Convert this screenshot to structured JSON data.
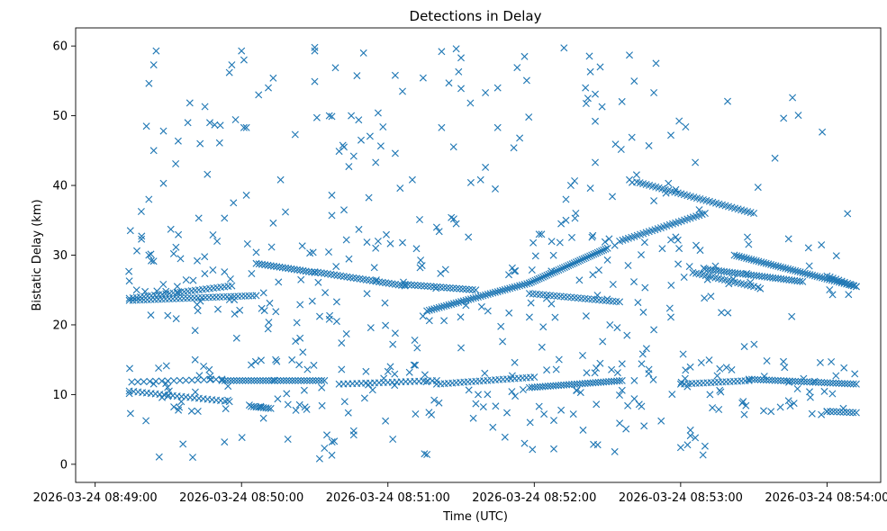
{
  "chart_data": {
    "type": "scatter",
    "title": "Detections in Delay",
    "xlabel": "Time (UTC)",
    "ylabel": "Bistatic Delay (km)",
    "marker": "x",
    "color": "#1f77b4",
    "xlim": [
      -8,
      322
    ],
    "ylim": [
      -2.6,
      62.6
    ],
    "x_unit": "seconds after 2026-03-24 08:49:00",
    "x_ticks": [
      {
        "value": 0,
        "label": "2026-03-24 08:49:00"
      },
      {
        "value": 60,
        "label": "2026-03-24 08:50:00"
      },
      {
        "value": 120,
        "label": "2026-03-24 08:51:00"
      },
      {
        "value": 180,
        "label": "2026-03-24 08:52:00"
      },
      {
        "value": 240,
        "label": "2026-03-24 08:53:00"
      },
      {
        "value": 300,
        "label": "2026-03-24 08:54:00"
      }
    ],
    "y_ticks": [
      0,
      10,
      20,
      30,
      40,
      50,
      60
    ],
    "tracks": [
      {
        "name": "track-a",
        "x_start": 14,
        "x_end": 66,
        "x_step": 1.5,
        "y_start": 23.5,
        "y_end": 24.2
      },
      {
        "name": "track-b",
        "x_start": 14,
        "x_end": 56,
        "x_step": 1.5,
        "y_start": 23.8,
        "y_end": 25.6
      },
      {
        "name": "track-c",
        "x_start": 66,
        "x_end": 90,
        "x_step": 1.2,
        "y_start": 28.8,
        "y_end": 27.5
      },
      {
        "name": "track-d",
        "x_start": 90,
        "x_end": 127,
        "x_step": 1.3,
        "y_start": 27.6,
        "y_end": 25.6
      },
      {
        "name": "track-e",
        "x_start": 127,
        "x_end": 156,
        "x_step": 1.3,
        "y_start": 25.8,
        "y_end": 25.0
      },
      {
        "name": "track-f",
        "x_start": 136,
        "x_end": 178,
        "x_step": 1.0,
        "y_start": 22.0,
        "y_end": 26.0
      },
      {
        "name": "track-g",
        "x_start": 178,
        "x_end": 210,
        "x_step": 0.8,
        "y_start": 26.0,
        "y_end": 31.0
      },
      {
        "name": "track-h",
        "x_start": 178,
        "x_end": 215,
        "x_step": 1.4,
        "y_start": 24.5,
        "y_end": 23.3
      },
      {
        "name": "track-i",
        "x_start": 215,
        "x_end": 250,
        "x_step": 1.2,
        "y_start": 32.0,
        "y_end": 36.0
      },
      {
        "name": "track-j",
        "x_start": 222,
        "x_end": 270,
        "x_step": 1.3,
        "y_start": 40.5,
        "y_end": 36.0
      },
      {
        "name": "track-k",
        "x_start": 245,
        "x_end": 270,
        "x_step": 1.3,
        "y_start": 27.5,
        "y_end": 25.5
      },
      {
        "name": "track-l",
        "x_start": 250,
        "x_end": 290,
        "x_step": 1.1,
        "y_start": 28.0,
        "y_end": 26.2
      },
      {
        "name": "track-m",
        "x_start": 262,
        "x_end": 312,
        "x_step": 1.0,
        "y_start": 30.0,
        "y_end": 25.5
      },
      {
        "name": "track-n",
        "x_start": 300,
        "x_end": 312,
        "x_step": 1.2,
        "y_start": 27.0,
        "y_end": 25.5
      },
      {
        "name": "track-o",
        "x_start": 14,
        "x_end": 55,
        "x_step": 1.8,
        "y_start": 10.5,
        "y_end": 9.0
      },
      {
        "name": "track-p",
        "x_start": 15,
        "x_end": 52,
        "x_step": 2.5,
        "y_start": 11.8,
        "y_end": 12.2
      },
      {
        "name": "track-q",
        "x_start": 52,
        "x_end": 94,
        "x_step": 1.2,
        "y_start": 12.0,
        "y_end": 12.0
      },
      {
        "name": "track-r",
        "x_start": 100,
        "x_end": 140,
        "x_step": 1.8,
        "y_start": 11.5,
        "y_end": 12.0
      },
      {
        "name": "track-s",
        "x_start": 140,
        "x_end": 180,
        "x_step": 1.6,
        "y_start": 11.5,
        "y_end": 12.5
      },
      {
        "name": "track-t",
        "x_start": 178,
        "x_end": 216,
        "x_step": 1.1,
        "y_start": 11.0,
        "y_end": 12.0
      },
      {
        "name": "track-u",
        "x_start": 240,
        "x_end": 268,
        "x_step": 1.6,
        "y_start": 11.5,
        "y_end": 12.0
      },
      {
        "name": "track-v",
        "x_start": 268,
        "x_end": 312,
        "x_step": 1.2,
        "y_start": 12.2,
        "y_end": 11.5
      },
      {
        "name": "track-w",
        "x_start": 300,
        "x_end": 312,
        "x_step": 1.4,
        "y_start": 7.6,
        "y_end": 7.4
      },
      {
        "name": "track-x",
        "x_start": 64,
        "x_end": 72,
        "x_step": 1.0,
        "y_start": 8.3,
        "y_end": 8.0
      }
    ],
    "noise": {
      "count": 330,
      "x_range": [
        13,
        312
      ],
      "y_range": [
        0.5,
        60
      ],
      "seed": 42
    },
    "points": [
      [
        14,
        26.3
      ],
      [
        17,
        25.0
      ],
      [
        19,
        32.3
      ],
      [
        21,
        48.5
      ],
      [
        22,
        38.0
      ],
      [
        22,
        30.0
      ],
      [
        23,
        29.2
      ],
      [
        24,
        45.0
      ],
      [
        24,
        57.3
      ],
      [
        25,
        59.3
      ],
      [
        26,
        13.8
      ],
      [
        28,
        47.8
      ],
      [
        28,
        40.3
      ],
      [
        29,
        24.8
      ],
      [
        31,
        33.7
      ],
      [
        33,
        43.1
      ],
      [
        34,
        24.6
      ],
      [
        35,
        29.5
      ],
      [
        36,
        2.9
      ],
      [
        38,
        49.0
      ],
      [
        40,
        1.0
      ],
      [
        41,
        15.0
      ],
      [
        41,
        19.2
      ],
      [
        43,
        46.0
      ],
      [
        45,
        51.3
      ],
      [
        46,
        41.6
      ],
      [
        47,
        49.0
      ],
      [
        49,
        48.7
      ],
      [
        50,
        32.0
      ],
      [
        51,
        46.1
      ],
      [
        53,
        27.6
      ],
      [
        53,
        3.2
      ],
      [
        53,
        35.3
      ],
      [
        55,
        56.2
      ],
      [
        56,
        57.3
      ],
      [
        57,
        23.6
      ],
      [
        58,
        18.1
      ],
      [
        60,
        59.3
      ],
      [
        61,
        58.0
      ],
      [
        61,
        48.3
      ],
      [
        62,
        48.3
      ],
      [
        62,
        38.6
      ],
      [
        66,
        30.4
      ],
      [
        67,
        53.0
      ],
      [
        69,
        6.6
      ],
      [
        71,
        54.0
      ],
      [
        73,
        55.4
      ],
      [
        73,
        34.6
      ],
      [
        74,
        15.0
      ],
      [
        76,
        40.8
      ],
      [
        78,
        36.2
      ],
      [
        79,
        3.6
      ],
      [
        82,
        47.3
      ],
      [
        84,
        18.1
      ],
      [
        84,
        22.9
      ],
      [
        86,
        8.2
      ],
      [
        87,
        13.6
      ],
      [
        88,
        30.3
      ],
      [
        89,
        23.4
      ],
      [
        90,
        59.3
      ],
      [
        90,
        59.8
      ],
      [
        90,
        54.9
      ],
      [
        92,
        0.8
      ],
      [
        93,
        8.4
      ],
      [
        94,
        2.3
      ],
      [
        95,
        4.2
      ],
      [
        96,
        20.8
      ],
      [
        96,
        50.0
      ],
      [
        97,
        49.9
      ],
      [
        97,
        38.6
      ],
      [
        97,
        35.7
      ],
      [
        97,
        1.3
      ],
      [
        98,
        3.3
      ],
      [
        99,
        20.5
      ],
      [
        99,
        23.3
      ],
      [
        100,
        44.9
      ],
      [
        101,
        13.6
      ],
      [
        101,
        17.4
      ],
      [
        102,
        45.5
      ],
      [
        102,
        36.5
      ],
      [
        103,
        18.7
      ],
      [
        104,
        42.7
      ],
      [
        105,
        50.0
      ],
      [
        106,
        44.2
      ],
      [
        106,
        4.2
      ],
      [
        106,
        4.8
      ],
      [
        108,
        49.4
      ],
      [
        109,
        46.5
      ],
      [
        110,
        59.0
      ],
      [
        111,
        13.3
      ],
      [
        112,
        11.4
      ],
      [
        113,
        19.6
      ],
      [
        115,
        43.3
      ],
      [
        115,
        31.0
      ],
      [
        116,
        32.0
      ],
      [
        116,
        50.4
      ],
      [
        118,
        48.4
      ],
      [
        119,
        6.2
      ],
      [
        120,
        13.3
      ],
      [
        121,
        14.0
      ],
      [
        122,
        3.6
      ],
      [
        122,
        17.2
      ],
      [
        123,
        18.8
      ],
      [
        123,
        44.6
      ],
      [
        123,
        55.8
      ],
      [
        125,
        39.6
      ],
      [
        126,
        53.5
      ],
      [
        126,
        31.8
      ],
      [
        130,
        40.8
      ],
      [
        131,
        17.8
      ],
      [
        132,
        16.7
      ],
      [
        133,
        35.1
      ],
      [
        134,
        28.5
      ],
      [
        135,
        1.5
      ],
      [
        136,
        1.4
      ],
      [
        137,
        20.6
      ],
      [
        139,
        9.2
      ],
      [
        140,
        34.0
      ],
      [
        141,
        33.4
      ],
      [
        142,
        59.2
      ],
      [
        142,
        48.3
      ],
      [
        143,
        20.6
      ],
      [
        145,
        54.7
      ],
      [
        146,
        35.4
      ],
      [
        147,
        35.2
      ],
      [
        148,
        34.5
      ],
      [
        148,
        59.6
      ],
      [
        149,
        56.3
      ],
      [
        150,
        58.3
      ],
      [
        150,
        53.9
      ],
      [
        150,
        16.7
      ],
      [
        153,
        32.6
      ],
      [
        154,
        40.4
      ],
      [
        155,
        6.6
      ],
      [
        157,
        10.0
      ],
      [
        158,
        40.8
      ],
      [
        160,
        42.6
      ],
      [
        160,
        53.3
      ],
      [
        161,
        22.0
      ],
      [
        163,
        5.3
      ],
      [
        164,
        39.5
      ],
      [
        165,
        48.3
      ],
      [
        165,
        54.0
      ],
      [
        167,
        17.6
      ],
      [
        168,
        3.9
      ],
      [
        171,
        12.7
      ],
      [
        172,
        14.6
      ],
      [
        173,
        56.9
      ],
      [
        174,
        46.8
      ],
      [
        176,
        58.5
      ],
      [
        176,
        3.0
      ],
      [
        178,
        21.1
      ],
      [
        182,
        33.0
      ],
      [
        183,
        33.0
      ],
      [
        184,
        7.2
      ],
      [
        185,
        23.8
      ],
      [
        187,
        27.7
      ],
      [
        188,
        2.2
      ],
      [
        188,
        6.3
      ],
      [
        189,
        13.6
      ],
      [
        191,
        34.5
      ],
      [
        193,
        35.0
      ],
      [
        193,
        38.0
      ],
      [
        195,
        40.0
      ],
      [
        196,
        7.2
      ],
      [
        197,
        36.0
      ],
      [
        199,
        10.3
      ],
      [
        200,
        4.9
      ],
      [
        201,
        54.0
      ],
      [
        202,
        52.5
      ],
      [
        203,
        56.3
      ],
      [
        203,
        39.6
      ],
      [
        204,
        32.8
      ],
      [
        204,
        27.2
      ],
      [
        205,
        43.3
      ],
      [
        205,
        49.2
      ],
      [
        205,
        53.1
      ],
      [
        206,
        2.8
      ],
      [
        207,
        57.0
      ],
      [
        208,
        17.6
      ],
      [
        209,
        31.9
      ],
      [
        210,
        29.3
      ],
      [
        211,
        20.0
      ],
      [
        212,
        38.4
      ],
      [
        213,
        1.8
      ],
      [
        213,
        31.4
      ],
      [
        214,
        19.6
      ],
      [
        215,
        5.9
      ],
      [
        216,
        10.6
      ],
      [
        216,
        14.4
      ],
      [
        218,
        18.5
      ],
      [
        219,
        40.8
      ],
      [
        219,
        58.7
      ],
      [
        220,
        46.9
      ],
      [
        221,
        12.0
      ],
      [
        221,
        9.4
      ],
      [
        223,
        8.6
      ],
      [
        224,
        14.4
      ],
      [
        225,
        5.5
      ],
      [
        226,
        16.6
      ],
      [
        227,
        13.6
      ],
      [
        227,
        45.7
      ],
      [
        229,
        53.3
      ],
      [
        229,
        37.8
      ],
      [
        229,
        19.3
      ],
      [
        232,
        6.2
      ],
      [
        234,
        38.9
      ],
      [
        235,
        40.3
      ],
      [
        236,
        47.2
      ],
      [
        236,
        21.1
      ],
      [
        236,
        32.2
      ],
      [
        238,
        32.6
      ],
      [
        238,
        39.4
      ],
      [
        240,
        2.4
      ],
      [
        241,
        15.8
      ],
      [
        242,
        13.5
      ],
      [
        244,
        4.9
      ],
      [
        244,
        4.1
      ],
      [
        246,
        3.8
      ],
      [
        246,
        43.3
      ],
      [
        248,
        30.7
      ],
      [
        250,
        2.6
      ],
      [
        251,
        26.5
      ],
      [
        252,
        10.0
      ],
      [
        253,
        8.1
      ],
      [
        255,
        12.7
      ],
      [
        256,
        10.6
      ]
    ]
  }
}
